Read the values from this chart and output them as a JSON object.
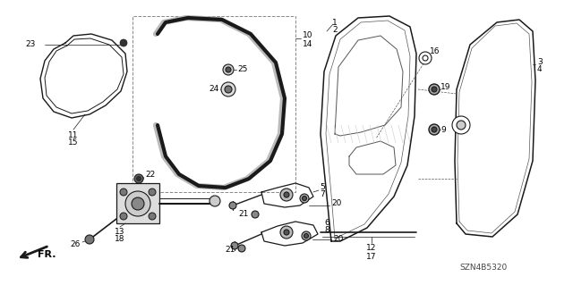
{
  "bg_color": "#ffffff",
  "fig_width": 6.4,
  "fig_height": 3.19,
  "dpi": 100,
  "diagram_credit": "SZN4B5320"
}
